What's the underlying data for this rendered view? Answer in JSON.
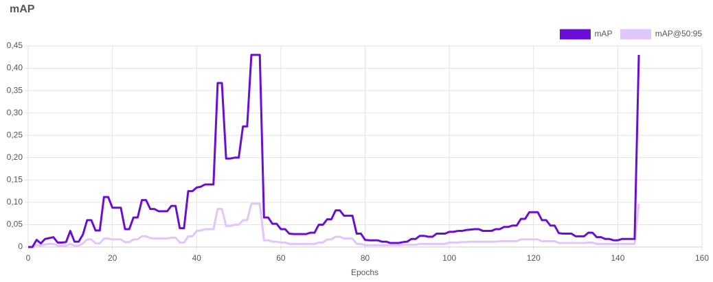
{
  "chart_data": {
    "type": "line",
    "title": "mAP",
    "x_label": "Epochs",
    "x": [
      0,
      1,
      2,
      3,
      4,
      5,
      6,
      7,
      8,
      9,
      10,
      11,
      12,
      13,
      14,
      15,
      16,
      17,
      18,
      19,
      20,
      21,
      22,
      23,
      24,
      25,
      26,
      27,
      28,
      29,
      30,
      31,
      32,
      33,
      34,
      35,
      36,
      37,
      38,
      39,
      40,
      41,
      42,
      43,
      44,
      45,
      46,
      47,
      48,
      49,
      50,
      51,
      52,
      53,
      54,
      55,
      56,
      57,
      58,
      59,
      60,
      61,
      62,
      63,
      64,
      65,
      66,
      67,
      68,
      69,
      70,
      71,
      72,
      73,
      74,
      75,
      76,
      77,
      78,
      79,
      80,
      81,
      82,
      83,
      84,
      85,
      86,
      87,
      88,
      89,
      90,
      91,
      92,
      93,
      94,
      95,
      96,
      97,
      98,
      99,
      100,
      101,
      102,
      103,
      104,
      105,
      106,
      107,
      108,
      109,
      110,
      111,
      112,
      113,
      114,
      115,
      116,
      117,
      118,
      119,
      120,
      121,
      122,
      123,
      124,
      125,
      126,
      127,
      128,
      129,
      130,
      131,
      132,
      133,
      134,
      135,
      136,
      137,
      138,
      139,
      140,
      141,
      142,
      143,
      144,
      145
    ],
    "series": [
      {
        "name": "mAP",
        "color": "#6a0dd6",
        "values": [
          0,
          0,
          0.016,
          0.008,
          0.018,
          0.02,
          0.022,
          0.01,
          0.01,
          0.011,
          0.036,
          0.012,
          0.012,
          0.028,
          0.06,
          0.06,
          0.037,
          0.037,
          0.112,
          0.112,
          0.088,
          0.088,
          0.088,
          0.04,
          0.04,
          0.066,
          0.066,
          0.105,
          0.105,
          0.085,
          0.085,
          0.08,
          0.08,
          0.08,
          0.092,
          0.092,
          0.042,
          0.042,
          0.125,
          0.125,
          0.133,
          0.135,
          0.14,
          0.14,
          0.14,
          0.367,
          0.367,
          0.198,
          0.198,
          0.2,
          0.2,
          0.27,
          0.27,
          0.43,
          0.43,
          0.43,
          0.066,
          0.066,
          0.052,
          0.052,
          0.04,
          0.04,
          0.03,
          0.029,
          0.029,
          0.029,
          0.029,
          0.032,
          0.032,
          0.05,
          0.05,
          0.062,
          0.062,
          0.082,
          0.082,
          0.07,
          0.07,
          0.07,
          0.03,
          0.03,
          0.016,
          0.015,
          0.015,
          0.015,
          0.012,
          0.012,
          0.009,
          0.009,
          0.009,
          0.011,
          0.012,
          0.018,
          0.018,
          0.025,
          0.025,
          0.023,
          0.023,
          0.03,
          0.03,
          0.03,
          0.034,
          0.034,
          0.036,
          0.036,
          0.038,
          0.039,
          0.04,
          0.04,
          0.036,
          0.036,
          0.036,
          0.04,
          0.04,
          0.045,
          0.045,
          0.048,
          0.048,
          0.063,
          0.063,
          0.078,
          0.078,
          0.078,
          0.06,
          0.06,
          0.048,
          0.048,
          0.031,
          0.03,
          0.03,
          0.03,
          0.024,
          0.024,
          0.024,
          0.032,
          0.032,
          0.022,
          0.022,
          0.018,
          0.018,
          0.015,
          0.015,
          0.018,
          0.018,
          0.018,
          0.018,
          0.43
        ]
      },
      {
        "name": "mAP@50:95",
        "color": "#e0c6fa",
        "values": [
          0,
          0,
          0.005,
          0.003,
          0.006,
          0.007,
          0.007,
          0.003,
          0.003,
          0.003,
          0.007,
          0.003,
          0.003,
          0.008,
          0.017,
          0.017,
          0.008,
          0.008,
          0.019,
          0.019,
          0.017,
          0.017,
          0.017,
          0.011,
          0.011,
          0.017,
          0.017,
          0.024,
          0.024,
          0.02,
          0.019,
          0.019,
          0.019,
          0.019,
          0.021,
          0.021,
          0.01,
          0.01,
          0.024,
          0.024,
          0.036,
          0.037,
          0.04,
          0.04,
          0.04,
          0.085,
          0.085,
          0.047,
          0.047,
          0.05,
          0.05,
          0.06,
          0.06,
          0.097,
          0.097,
          0.097,
          0.015,
          0.015,
          0.012,
          0.012,
          0.01,
          0.01,
          0.007,
          0.007,
          0.007,
          0.007,
          0.007,
          0.007,
          0.007,
          0.01,
          0.01,
          0.017,
          0.017,
          0.023,
          0.023,
          0.019,
          0.019,
          0.019,
          0.007,
          0.007,
          0.004,
          0.004,
          0.004,
          0.004,
          0.004,
          0.004,
          0.004,
          0.004,
          0.004,
          0.005,
          0.005,
          0.005,
          0.005,
          0.007,
          0.007,
          0.007,
          0.007,
          0.007,
          0.007,
          0.007,
          0.01,
          0.01,
          0.01,
          0.011,
          0.011,
          0.012,
          0.012,
          0.012,
          0.012,
          0.012,
          0.012,
          0.012,
          0.013,
          0.013,
          0.013,
          0.013,
          0.013,
          0.017,
          0.017,
          0.017,
          0.017,
          0.017,
          0.013,
          0.013,
          0.013,
          0.013,
          0.009,
          0.009,
          0.009,
          0.009,
          0.009,
          0.009,
          0.009,
          0.01,
          0.01,
          0.007,
          0.007,
          0.007,
          0.007,
          0.007,
          0.007,
          0.007,
          0.007,
          0.007,
          0.007,
          0.097
        ]
      }
    ],
    "xlim": [
      0,
      160
    ],
    "xticks": [
      0,
      20,
      40,
      60,
      80,
      100,
      120,
      140,
      160
    ],
    "ylim": [
      0,
      0.45
    ],
    "yticks": [
      0,
      {
        "value": 0.05,
        "label": "0,05"
      },
      {
        "value": 0.1,
        "label": "0,10"
      },
      {
        "value": 0.15,
        "label": "0,15"
      },
      {
        "value": 0.2,
        "label": "0,20"
      },
      {
        "value": 0.25,
        "label": "0,25"
      },
      {
        "value": 0.3,
        "label": "0,30"
      },
      {
        "value": 0.35,
        "label": "0,35"
      },
      {
        "value": 0.4,
        "label": "0,40"
      },
      {
        "value": 0.45,
        "label": "0,45"
      }
    ],
    "grid": true,
    "legend": "top-right"
  }
}
